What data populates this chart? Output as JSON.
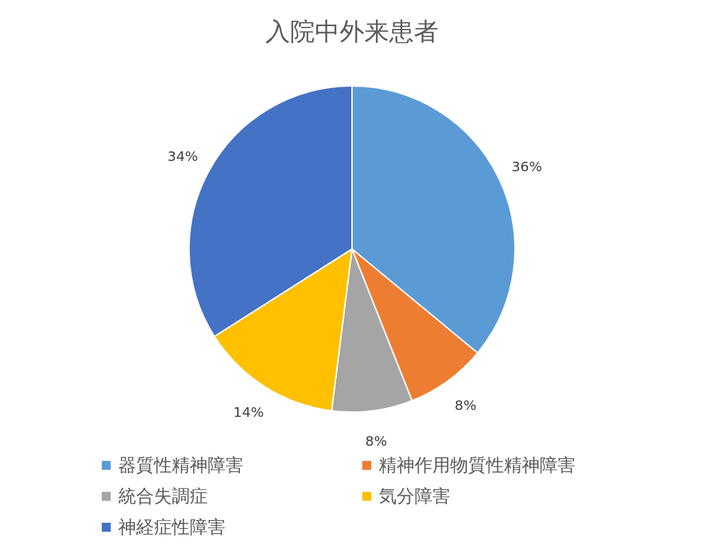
{
  "chart_data": {
    "type": "pie",
    "title": "入院中外来患者",
    "categories": [
      "器質性精神障害",
      "精神作用物質性精神障害",
      "統合失調症",
      "気分障害",
      "神経症性障害"
    ],
    "values": [
      36,
      8,
      8,
      14,
      34
    ],
    "colors": [
      "#5b9bd5",
      "#ed7d31",
      "#a5a5a5",
      "#ffc000",
      "#4472c4"
    ],
    "value_labels": [
      "36%",
      "8%",
      "8%",
      "14%",
      "34%"
    ],
    "legend": "bottom"
  }
}
